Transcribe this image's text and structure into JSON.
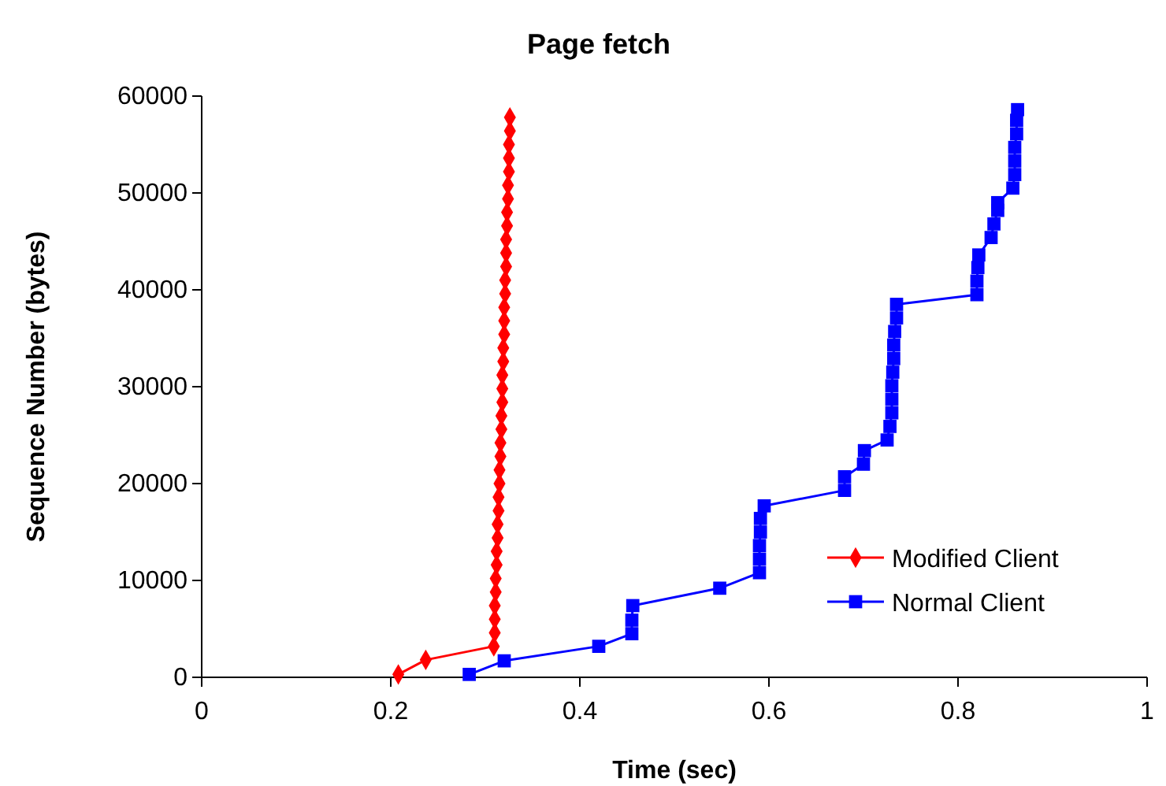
{
  "chart_data": {
    "type": "line",
    "title": "Page fetch",
    "xlabel": "Time (sec)",
    "ylabel": "Sequence Number (bytes)",
    "xlim": [
      0,
      1
    ],
    "xticks": [
      0,
      0.2,
      0.4,
      0.6,
      0.8,
      1
    ],
    "ylim": [
      0,
      60000
    ],
    "yticks": [
      0,
      10000,
      20000,
      30000,
      40000,
      50000,
      60000
    ],
    "grid": false,
    "legend": "right",
    "line_style": "solid",
    "series": [
      {
        "name": "Modified Client",
        "color": "#ff0000",
        "marker": "diamond",
        "x": [
          0.208,
          0.237,
          0.309,
          0.31,
          0.31,
          0.31,
          0.311,
          0.311,
          0.312,
          0.312,
          0.313,
          0.313,
          0.314,
          0.314,
          0.315,
          0.315,
          0.316,
          0.316,
          0.317,
          0.317,
          0.318,
          0.318,
          0.318,
          0.319,
          0.319,
          0.32,
          0.32,
          0.32,
          0.321,
          0.321,
          0.322,
          0.322,
          0.322,
          0.323,
          0.323,
          0.324,
          0.324,
          0.325,
          0.325,
          0.325,
          0.326,
          0.326
        ],
        "values": [
          300,
          1800,
          3200,
          4600,
          6000,
          7400,
          8800,
          10200,
          11600,
          13000,
          14400,
          15800,
          17200,
          18600,
          20000,
          21400,
          22800,
          24200,
          25600,
          27000,
          28400,
          29800,
          31200,
          32600,
          34000,
          35400,
          36800,
          38200,
          39600,
          41000,
          42400,
          43800,
          45200,
          46600,
          48000,
          49400,
          50800,
          52200,
          53600,
          55000,
          56400,
          57800
        ]
      },
      {
        "name": "Normal Client",
        "color": "#0000ff",
        "marker": "square",
        "x": [
          0.283,
          0.32,
          0.42,
          0.455,
          0.455,
          0.456,
          0.548,
          0.59,
          0.59,
          0.59,
          0.591,
          0.591,
          0.595,
          0.68,
          0.68,
          0.7,
          0.701,
          0.725,
          0.728,
          0.73,
          0.73,
          0.73,
          0.731,
          0.732,
          0.732,
          0.733,
          0.735,
          0.735,
          0.82,
          0.82,
          0.821,
          0.822,
          0.835,
          0.838,
          0.842,
          0.842,
          0.858,
          0.86,
          0.86,
          0.86,
          0.862,
          0.862,
          0.863
        ],
        "values": [
          300,
          1700,
          3200,
          4500,
          5900,
          7400,
          9200,
          10800,
          12200,
          13600,
          15000,
          16400,
          17700,
          19300,
          20700,
          22000,
          23400,
          24500,
          25900,
          27300,
          28700,
          30100,
          31500,
          32900,
          34300,
          35700,
          37100,
          38500,
          39500,
          40900,
          42300,
          43600,
          45400,
          46800,
          48200,
          49000,
          50500,
          51900,
          53300,
          54700,
          56100,
          57500,
          58600
        ]
      }
    ]
  }
}
